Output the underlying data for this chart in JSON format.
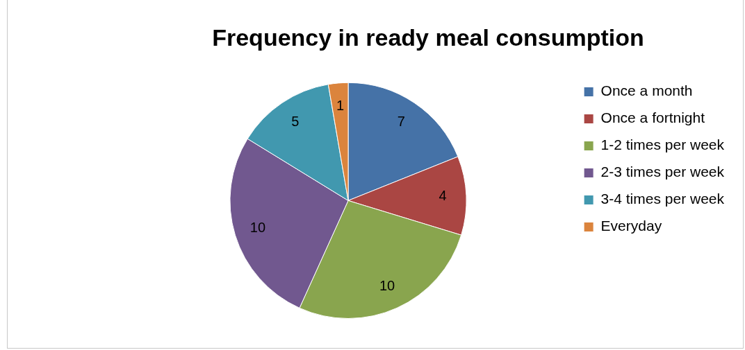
{
  "chart_data": {
    "type": "pie",
    "title": "Frequency in ready meal consumption",
    "categories": [
      "Once a month",
      "Once a fortnight",
      "1-2 times per week",
      "2-3 times per week",
      "3-4 times per week",
      "Everyday"
    ],
    "values": [
      7,
      4,
      10,
      10,
      5,
      1
    ],
    "colors": [
      "#4572a7",
      "#aa4643",
      "#89a54e",
      "#71588f",
      "#4198af",
      "#db843d"
    ],
    "data_labels": true,
    "legend": "right"
  }
}
